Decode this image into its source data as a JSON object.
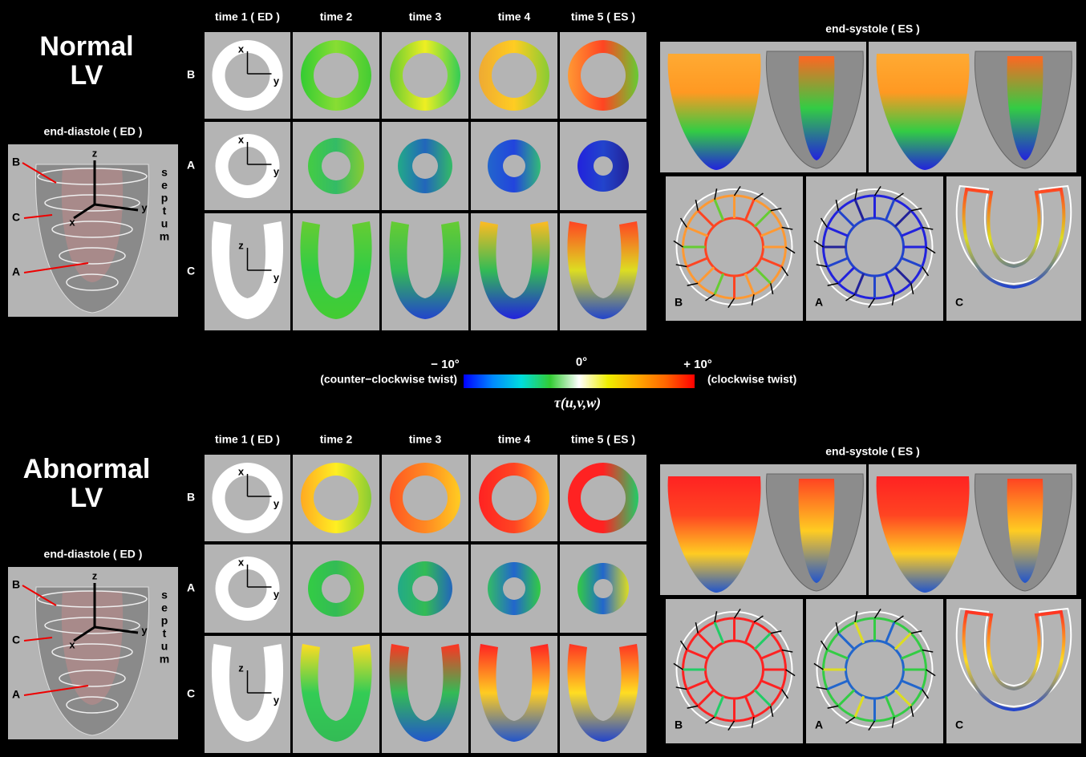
{
  "sections": [
    {
      "title": [
        "Normal",
        "LV"
      ],
      "ed_label": "end-diastole ( ED )",
      "heart_labels": [
        "B",
        "C",
        "A"
      ],
      "heart_axes": [
        "z",
        "x",
        "y"
      ],
      "septum": [
        "s",
        "e",
        "p",
        "t",
        "u",
        "m"
      ],
      "time_headers": [
        "time 1 ( ED )",
        "time 2",
        "time 3",
        "time 4",
        "time 5 ( ES )"
      ],
      "row_labels": [
        "B",
        "A",
        "C"
      ],
      "slice_axes": [
        [
          "x",
          "y"
        ],
        [
          "x",
          "y"
        ],
        [
          "z",
          "y"
        ]
      ],
      "es_title": "end-systole ( ES )",
      "ring_labels": [
        "B",
        "A",
        "C"
      ]
    },
    {
      "title": [
        "Abnormal",
        "LV"
      ],
      "ed_label": "end-diastole ( ED )",
      "heart_labels": [
        "B",
        "C",
        "A"
      ],
      "heart_axes": [
        "z",
        "x",
        "y"
      ],
      "septum": [
        "s",
        "e",
        "p",
        "t",
        "u",
        "m"
      ],
      "time_headers": [
        "time 1 ( ED )",
        "time 2",
        "time 3",
        "time 4",
        "time 5 ( ES )"
      ],
      "row_labels": [
        "B",
        "A",
        "C"
      ],
      "slice_axes": [
        [
          "x",
          "y"
        ],
        [
          "x",
          "y"
        ],
        [
          "z",
          "y"
        ]
      ],
      "es_title": "end-systole ( ES )",
      "ring_labels": [
        "B",
        "A",
        "C"
      ]
    }
  ],
  "colorbar": {
    "min_label": "− 10°",
    "mid_label": "0°",
    "max_label": "+ 10°",
    "left_note": "(counter−clockwise twist)",
    "right_note": "(clockwise twist)",
    "symbol": "τ(u,v,w)"
  }
}
